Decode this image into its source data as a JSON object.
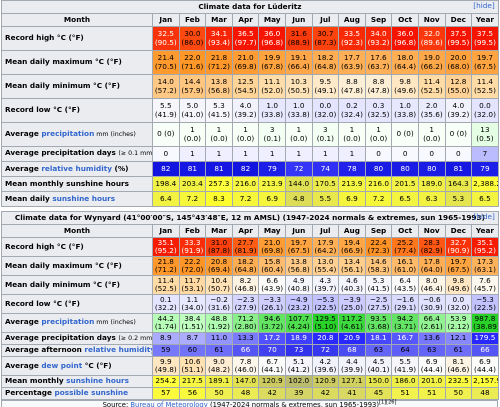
{
  "tables": [
    {
      "title": "Climate data for Lüderitz",
      "hide": "[hide]",
      "header": [
        "Month",
        "Jan",
        "Feb",
        "Mar",
        "Apr",
        "May",
        "Jun",
        "Jul",
        "Aug",
        "Sep",
        "Oct",
        "Nov",
        "Dec",
        "Year"
      ],
      "rows": [
        {
          "label": [
            "Record high °C (°F)"
          ],
          "scale": "temp",
          "cells": [
            "32.5 (90.5)",
            "30.0 (86.0)",
            "34.1 (93.4)",
            "36.5 (97.7)",
            "36.0 (96.8)",
            "31.6 (88.9)",
            "30.7 (87.3)",
            "33.5 (92.3)",
            "34.0 (93.2)",
            "36.0 (96.8)",
            "32.0 (89.6)",
            "37.5 (99.5)",
            "37.5 (99.5)"
          ]
        },
        {
          "label": [
            "Mean daily maximum °C (°F)"
          ],
          "scale": "temp",
          "cells": [
            "21.4 (70.5)",
            "22.0 (71.6)",
            "21.8 (71.2)",
            "21.0 (69.8)",
            "19.9 (67.8)",
            "19.1 (66.4)",
            "18.2 (64.8)",
            "17.7 (63.9)",
            "17.6 (63.7)",
            "18.0 (64.4)",
            "19.0 (66.2)",
            "20.0 (68.0)",
            "19.7 (67.5)"
          ]
        },
        {
          "label": [
            "Mean daily minimum °C (°F)"
          ],
          "scale": "temp",
          "cells": [
            "14.0 (57.2)",
            "14.4 (57.9)",
            "13.8 (56.8)",
            "12.5 (54.5)",
            "11.1 (52.0)",
            "10.3 (50.5)",
            "9.5 (49.1)",
            "8.8 (47.8)",
            "8.8 (47.8)",
            "9.8 (49.6)",
            "11.4 (52.5)",
            "12.8 (55.0)",
            "11.4 (52.5)"
          ]
        },
        {
          "label": [
            "Record low °C (°F)"
          ],
          "scale": "temp",
          "cells": [
            "5.5 (41.9)",
            "5.0 (41.0)",
            "5.3 (41.5)",
            "4.0 (39.2)",
            "1.0 (33.8)",
            "1.0 (33.8)",
            "0.0 (32.0)",
            "0.2 (32.4)",
            "0.3 (32.5)",
            "1.0 (33.8)",
            "2.0 (35.6)",
            "4.0 (39.2)",
            "0.0 (32.0)"
          ]
        },
        {
          "label": [
            "Average ",
            {
              "text": "precipitation",
              "link": true
            },
            {
              "text": " mm (inches)",
              "small": true
            }
          ],
          "scale": "rain",
          "cells": [
            "0 (0)",
            "1 (0.0)",
            "1 (0.0)",
            "1 (0.0)",
            "3 (0.1)",
            "1 (0.0)",
            "3 (0.1)",
            "1 (0.0)",
            "1 (0.0)",
            "0 (0)",
            "1 (0.0)",
            "0 (0)",
            "13 (0.5)"
          ]
        },
        {
          "label": [
            "Average precipitation days ",
            {
              "text": "(≥ 0.1 mm)",
              "small": true
            }
          ],
          "scale": "days",
          "cells": [
            "0",
            "1",
            "1",
            "1",
            "1",
            "1",
            "1",
            "1",
            "0",
            "0",
            "0",
            "0",
            "7"
          ]
        },
        {
          "label": [
            "Average ",
            {
              "text": "relative humidity",
              "link": true
            },
            " (%)"
          ],
          "scale": "hum",
          "cells": [
            "82",
            "81",
            "81",
            "82",
            "79",
            "72",
            "74",
            "78",
            "80",
            "80",
            "80",
            "81",
            "79"
          ]
        },
        {
          "label": [
            "Mean monthly sunshine hours"
          ],
          "scale": "sun",
          "cells": [
            "198.4",
            "203.4",
            "257.3",
            "216.0",
            "213.9",
            "144.0",
            "170.5",
            "213.9",
            "216.0",
            "201.5",
            "189.0",
            "164.3",
            "2,388.2"
          ]
        },
        {
          "label": [
            "Mean daily ",
            {
              "text": "sunshine hours",
              "link": true
            }
          ],
          "scale": "sunday",
          "cells": [
            "6.4",
            "7.2",
            "8.3",
            "7.2",
            "6.9",
            "4.8",
            "5.5",
            "6.9",
            "7.2",
            "6.5",
            "6.3",
            "5.3",
            "6.5"
          ]
        }
      ]
    },
    {
      "title": "Climate data for Wynyard (41°00′00″S, 145°43′48″E, 12 m AMSL) (1947-2024 normals & extremes, sun 1965-1993)",
      "hide": "[hide]",
      "header": [
        "Month",
        "Jan",
        "Feb",
        "Mar",
        "Apr",
        "May",
        "Jun",
        "Jul",
        "Aug",
        "Sep",
        "Oct",
        "Nov",
        "Dec",
        "Year"
      ],
      "rows": [
        {
          "label": [
            "Record high °C (°F)"
          ],
          "scale": "temp",
          "cells": [
            "35.1 (95.2)",
            "33.3 (91.9)",
            "31.0 (87.8)",
            "27.7 (81.9)",
            "21.0 (69.8)",
            "19.7 (67.5)",
            "17.9 (64.2)",
            "19.4 (66.9)",
            "22.4 (72.3)",
            "25.2 (77.4)",
            "28.3 (82.9)",
            "32.7 (90.9)",
            "35.1 (95.2)"
          ]
        },
        {
          "label": [
            "Mean daily maximum °C (°F)"
          ],
          "scale": "temp",
          "cells": [
            "21.8 (71.2)",
            "22.2 (72.0)",
            "20.8 (69.4)",
            "18.2 (64.8)",
            "15.8 (60.4)",
            "13.8 (56.8)",
            "13.0 (55.4)",
            "13.4 (56.1)",
            "14.6 (58.3)",
            "16.1 (61.0)",
            "17.8 (64.0)",
            "19.7 (67.5)",
            "17.3 (63.1)"
          ]
        },
        {
          "label": [
            "Mean daily minimum °C (°F)"
          ],
          "scale": "temp",
          "cells": [
            "11.4 (52.5)",
            "11.7 (53.1)",
            "10.4 (50.7)",
            "8.2 (46.8)",
            "6.6 (43.9)",
            "4.9 (40.8)",
            "4.3 (39.7)",
            "4.6 (40.3)",
            "5.3 (41.5)",
            "6.4 (43.5)",
            "8.0 (46.4)",
            "9.8 (49.6)",
            "7.6 (45.7)"
          ]
        },
        {
          "label": [
            "Record low °C (°F)"
          ],
          "scale": "temp",
          "cells": [
            "0.1 (32.2)",
            "1.1 (34.0)",
            "−0.2 (31.6)",
            "−2.3 (27.9)",
            "−3.3 (26.1)",
            "−4.9 (23.2)",
            "−5.3 (22.5)",
            "−3.9 (25.0)",
            "−2.5 (27.5)",
            "−1.6 (29.1)",
            "−0.6 (30.9)",
            "0.0 (32.0)",
            "−5.3 (22.5)"
          ]
        },
        {
          "label": [
            "Average ",
            {
              "text": "precipitation",
              "link": true
            },
            {
              "text": " mm (inches)",
              "small": true
            }
          ],
          "scale": "rain",
          "cells": [
            "44.2 (1.74)",
            "38.4 (1.51)",
            "48.8 (1.92)",
            "71.2 (2.80)",
            "94.6 (3.72)",
            "107.7 (4.24)",
            "129.5 (5.10)",
            "117.2 (4.61)",
            "93.5 (3.68)",
            "94.2 (3.71)",
            "66.4 (2.61)",
            "53.9 (2.12)",
            "987.8 (38.89)"
          ]
        },
        {
          "label": [
            "Average precipitation days ",
            {
              "text": "(≥ 0.2 mm)",
              "small": true
            }
          ],
          "scale": "days",
          "cells": [
            "8.9",
            "8.7",
            "11.0",
            "13.3",
            "17.2",
            "18.9",
            "20.8",
            "20.9",
            "18.1",
            "16.7",
            "13.6",
            "12.1",
            "179.5"
          ]
        },
        {
          "label": [
            "Average afternoon ",
            {
              "text": "relative humidity",
              "link": true
            },
            " (%)"
          ],
          "scale": "hum2",
          "cells": [
            "59",
            "60",
            "61",
            "66",
            "70",
            "73",
            "72",
            "68",
            "63",
            "64",
            "63",
            "61",
            "66"
          ]
        },
        {
          "label": [
            "Average ",
            {
              "text": "dew point",
              "link": true
            },
            " °C (°F)"
          ],
          "scale": "dew",
          "cells": [
            "9.9 (49.8)",
            "10.6 (51.1)",
            "9.0 (48.2)",
            "7.8 (46.0)",
            "6.7 (44.1)",
            "5.1 (41.2)",
            "4.2 (39.6)",
            "4.4 (39.9)",
            "4.5 (40.1)",
            "5.5 (41.9)",
            "6.9 (44.4)",
            "8.1 (46.6)",
            "6.9 (44.4)"
          ]
        },
        {
          "label": [
            "Mean monthly ",
            {
              "text": "sunshine hours",
              "link": true
            }
          ],
          "scale": "sun",
          "cells": [
            "254.2",
            "217.5",
            "189.1",
            "147.0",
            "120.9",
            "102.0",
            "120.9",
            "127.1",
            "150.0",
            "186.0",
            "201.0",
            "232.5",
            "2,157.9"
          ]
        },
        {
          "label": [
            "Percentage ",
            {
              "text": "possible sunshine",
              "link": true
            }
          ],
          "scale": "pct",
          "cells": [
            "57",
            "56",
            "50",
            "48",
            "42",
            "39",
            "42",
            "41",
            "45",
            "51",
            "51",
            "50",
            "48"
          ]
        }
      ]
    }
  ],
  "source": [
    "Source: ",
    {
      "text": "Bureau of Meteorology",
      "link": true
    },
    " (1947-2024 normals & extremes, sun 1965-1993)",
    {
      "text": "[1][26]",
      "sup": true
    }
  ]
}
